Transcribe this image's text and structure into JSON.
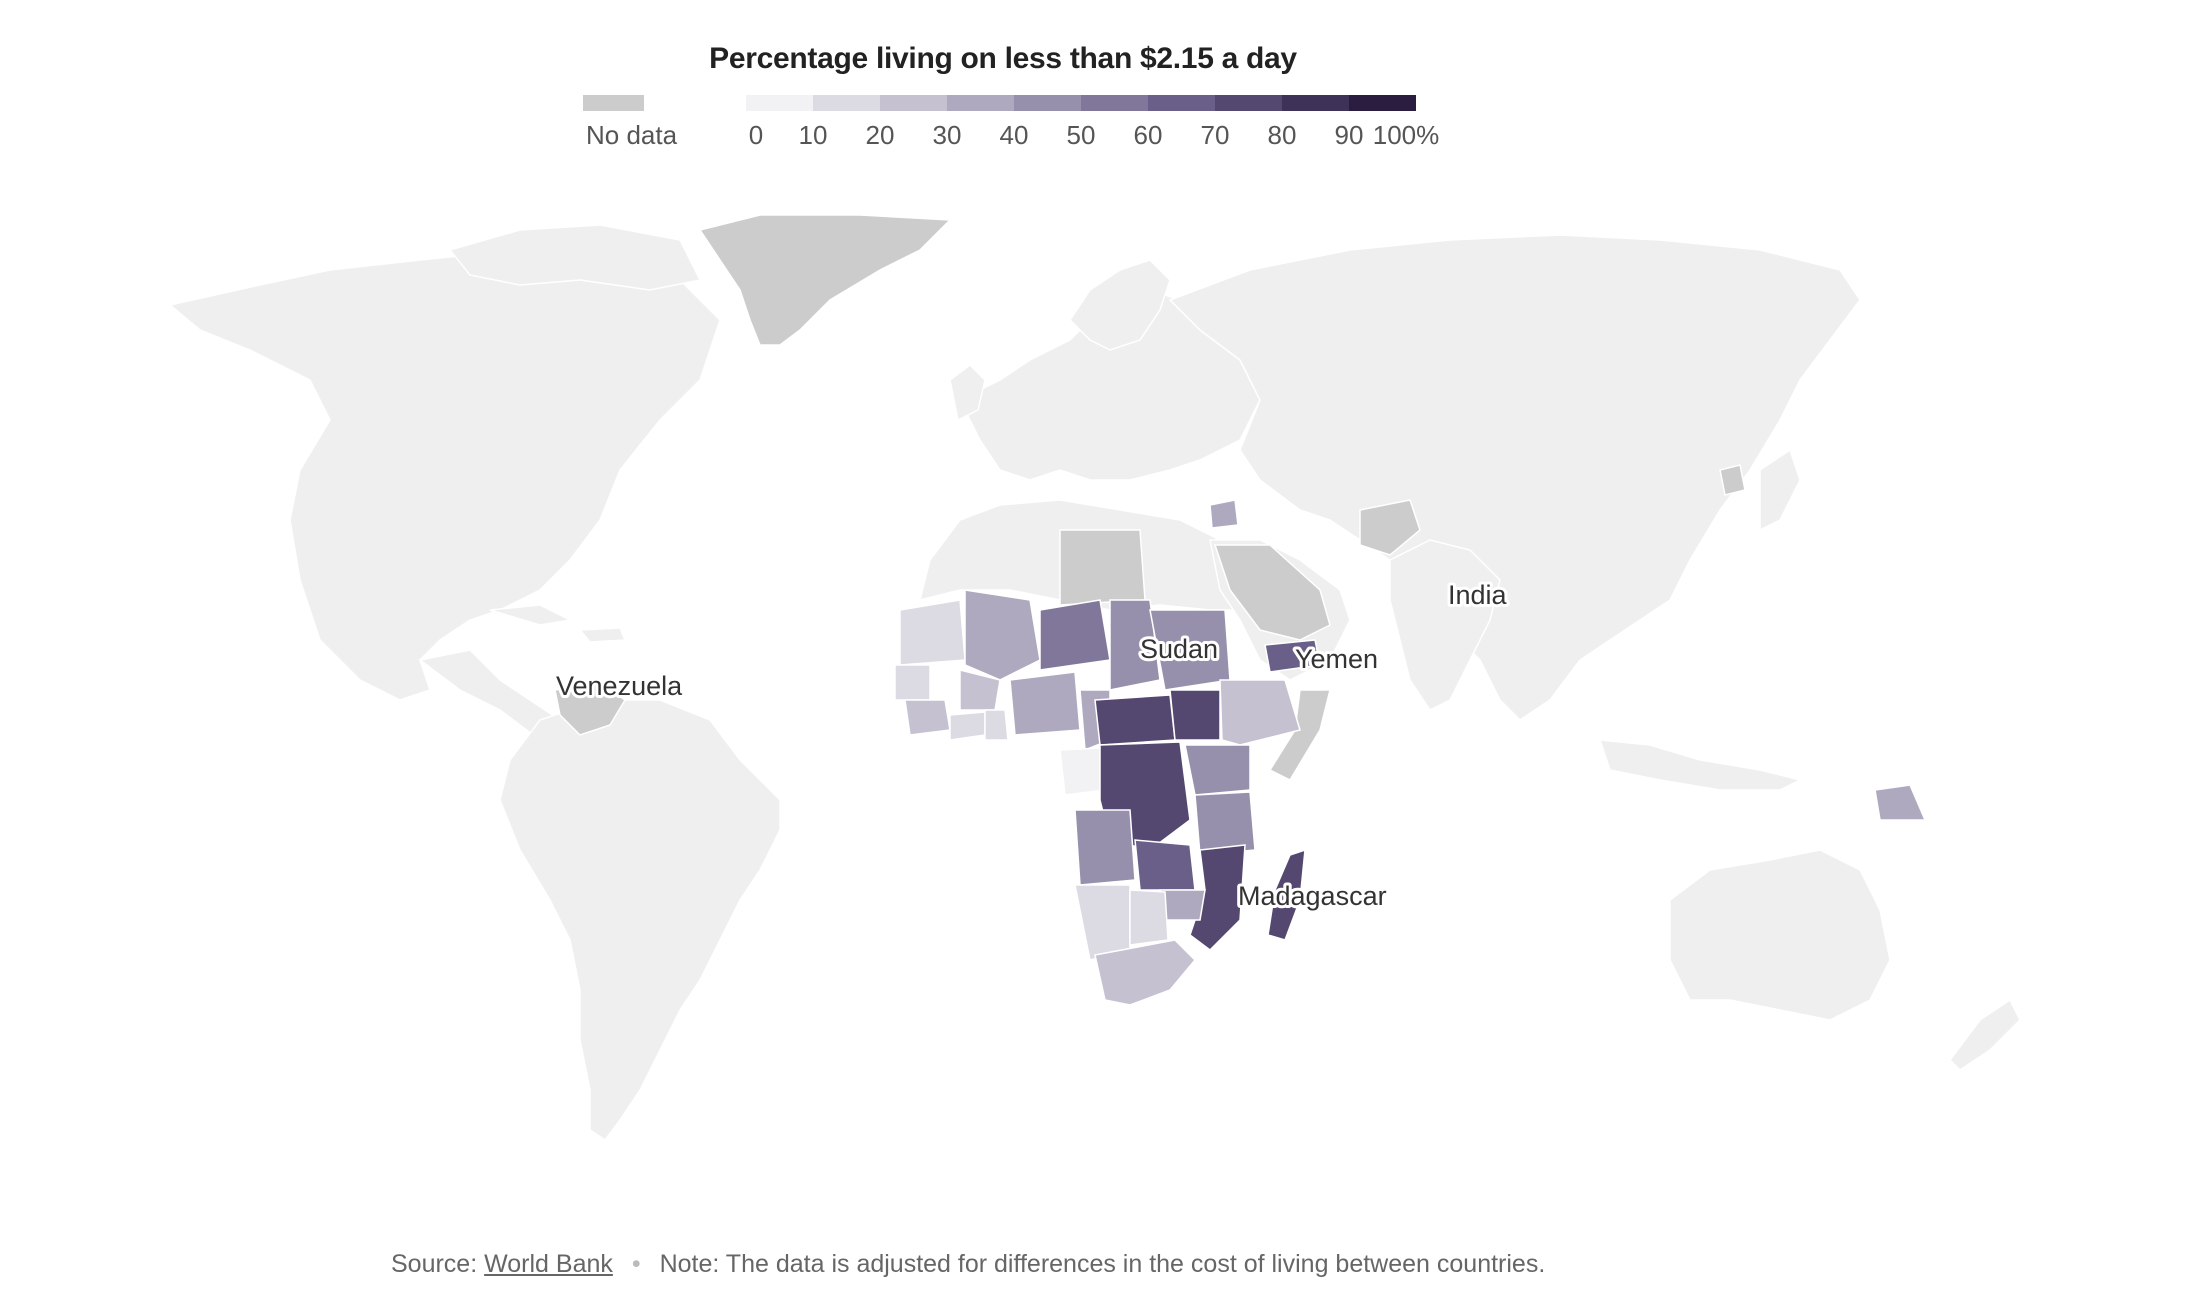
{
  "legend": {
    "title": "Percentage living on less than $2.15 a day",
    "no_data_label": "No data",
    "no_data_color": "#cccccc",
    "ticks": [
      "0",
      "10",
      "20",
      "30",
      "40",
      "50",
      "60",
      "70",
      "80",
      "90",
      "100%"
    ],
    "colors": [
      "#f2f2f4",
      "#dcdae2",
      "#c5c1d1",
      "#aea9bf",
      "#9790ad",
      "#80779b",
      "#6a5f88",
      "#544870",
      "#3f3258",
      "#2a1d3f"
    ]
  },
  "map": {
    "background_country_color": "#efefef",
    "labels": {
      "venezuela": "Venezuela",
      "sudan": "Sudan",
      "yemen": "Yemen",
      "india": "India",
      "madagascar": "Madagascar"
    }
  },
  "footer": {
    "source_prefix": "Source:",
    "source_link": "World Bank",
    "note": "Note: The data is adjusted for differences in the cost of living between countries."
  }
}
